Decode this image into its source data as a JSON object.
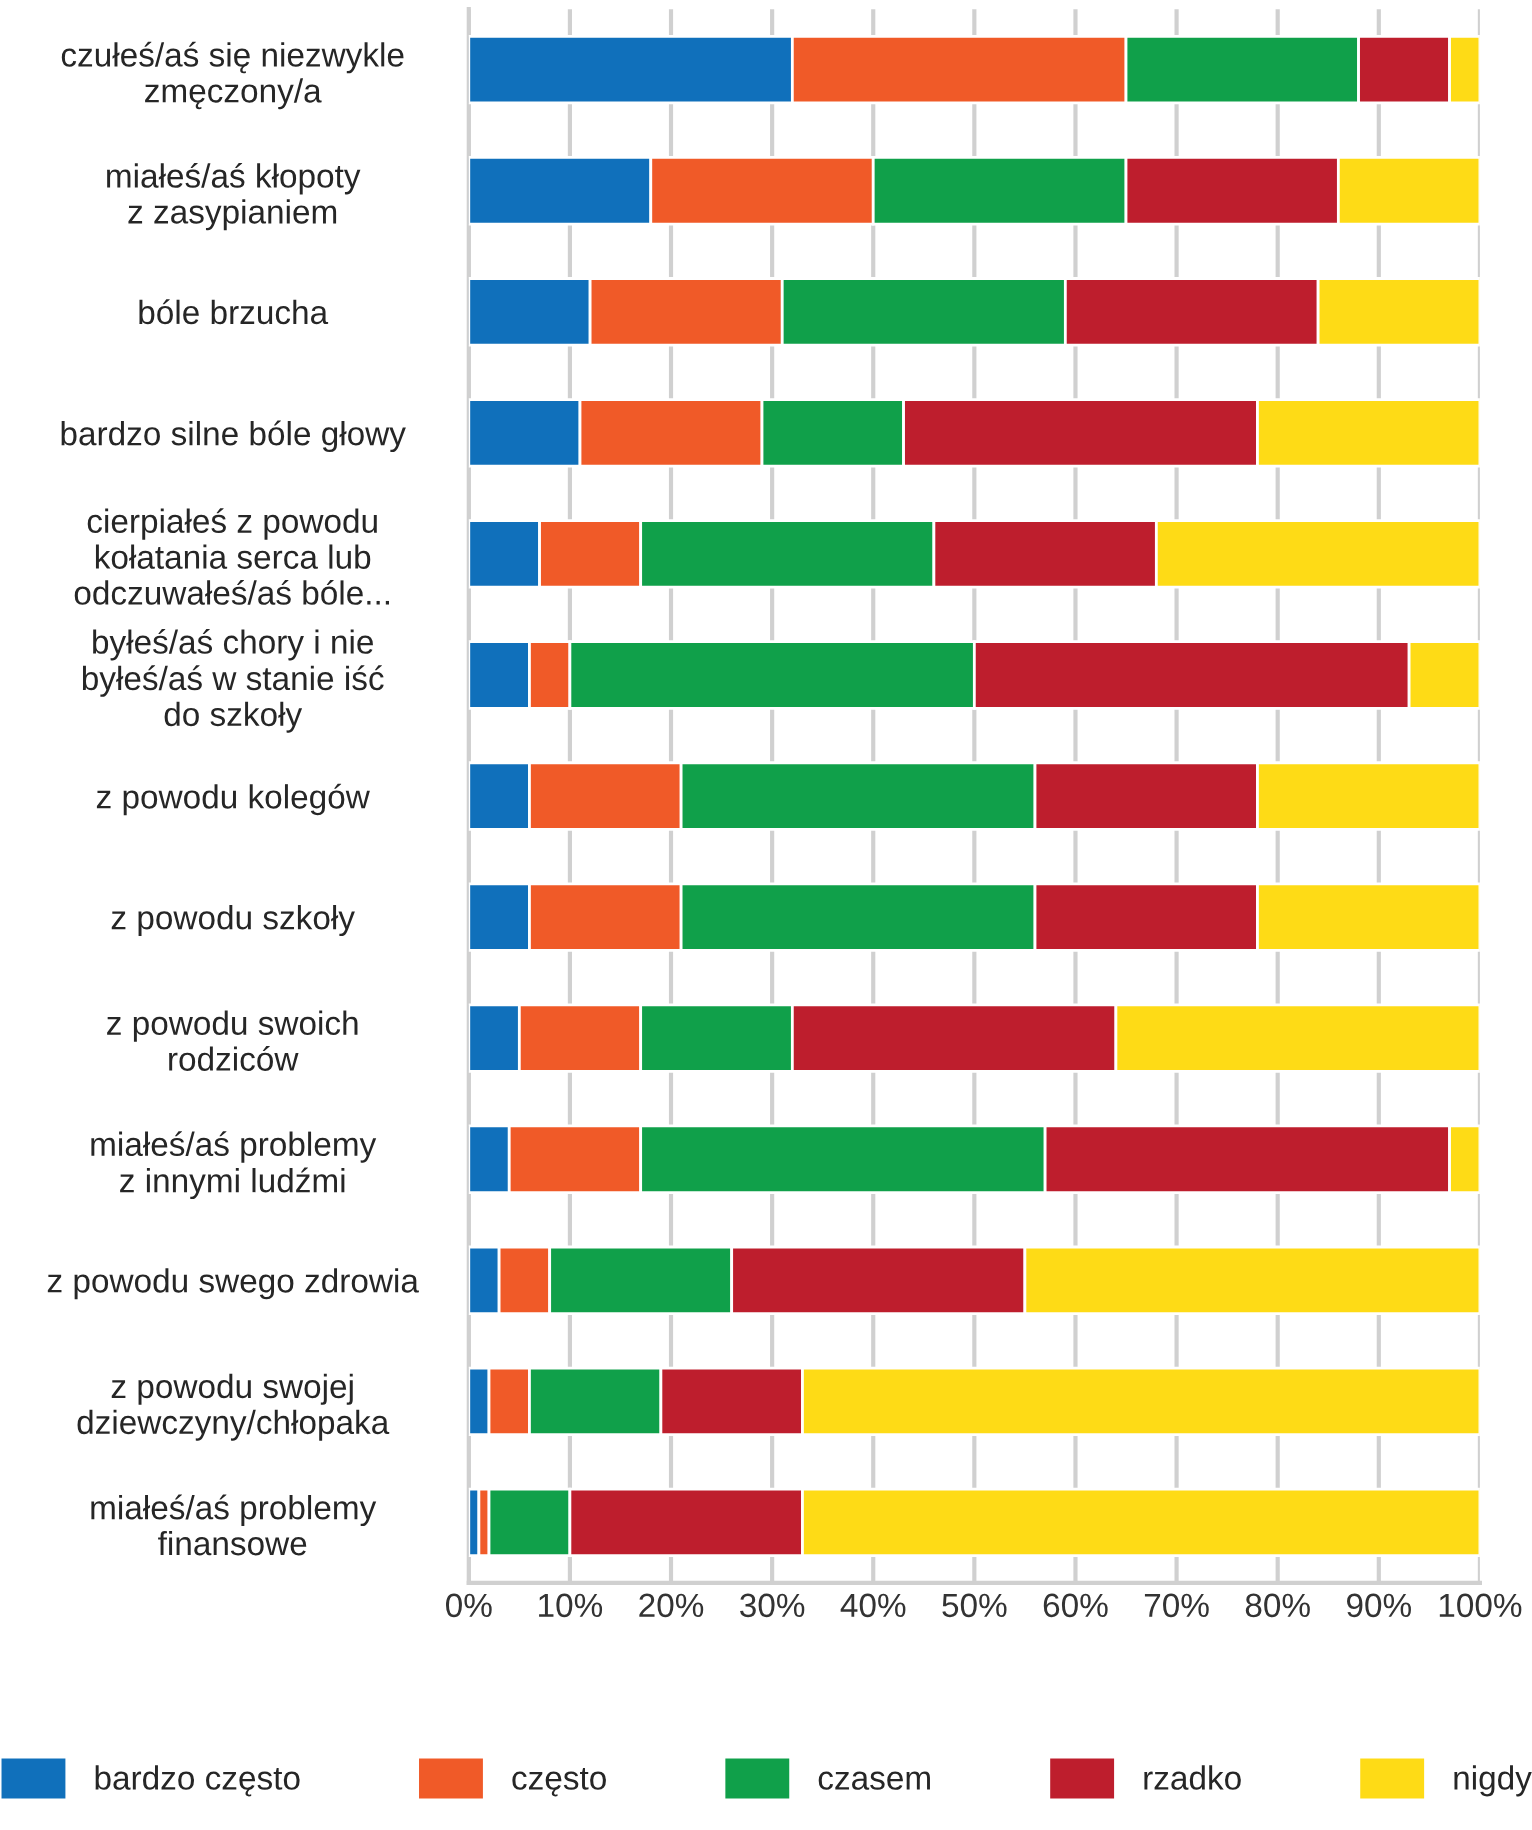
{
  "chart_data": {
    "type": "bar",
    "orientation": "horizontal",
    "stacked": true,
    "categories": [
      "czułeś/aś się niezwykle\nzmęczony/a",
      "miałeś/aś kłopoty\nz zasypianiem",
      "bóle brzucha",
      "bardzo silne bóle głowy",
      "cierpiałeś z powodu\nkołatania serca lub\nodczuwałeś/aś bóle...",
      "byłeś/aś chory i nie\nbyłeś/aś w stanie iść\ndo szkoły",
      "z powodu kolegów",
      "z powodu szkoły",
      "z powodu swoich\nrodziców",
      "miałeś/aś problemy\nz innymi ludźmi",
      "z powodu swego zdrowia",
      "z powodu swojej\ndziewczyny/chłopaka",
      "miałeś/aś problemy\nfinansowe"
    ],
    "series": [
      {
        "name": "bardzo często",
        "color": "#1070bb",
        "values": [
          32,
          18,
          12,
          11,
          7,
          6,
          6,
          6,
          5,
          4,
          3,
          2,
          1
        ]
      },
      {
        "name": "często",
        "color": "#f05a28",
        "values": [
          33,
          22,
          19,
          18,
          10,
          4,
          15,
          15,
          12,
          13,
          5,
          4,
          1
        ]
      },
      {
        "name": "czasem",
        "color": "#10a04a",
        "values": [
          23,
          25,
          28,
          14,
          29,
          40,
          35,
          35,
          15,
          40,
          18,
          13,
          8
        ]
      },
      {
        "name": "rzadko",
        "color": "#be1e2d",
        "values": [
          9,
          21,
          25,
          35,
          22,
          43,
          22,
          22,
          32,
          40,
          29,
          14,
          23
        ]
      },
      {
        "name": "nigdy",
        "color": "#fedb16",
        "values": [
          3,
          14,
          16,
          22,
          32,
          7,
          22,
          22,
          36,
          3,
          45,
          67,
          67
        ]
      }
    ],
    "xlim": [
      0,
      100
    ],
    "xticks": [
      {
        "value": 0,
        "label": "0%"
      },
      {
        "value": 10,
        "label": "10%"
      },
      {
        "value": 20,
        "label": "20%"
      },
      {
        "value": 30,
        "label": "30%"
      },
      {
        "value": 40,
        "label": "40%"
      },
      {
        "value": 50,
        "label": "50%"
      },
      {
        "value": 60,
        "label": "60%"
      },
      {
        "value": 70,
        "label": "70%"
      },
      {
        "value": 80,
        "label": "80%"
      },
      {
        "value": 90,
        "label": "90%"
      },
      {
        "value": 100,
        "label": "100%"
      }
    ],
    "grid": "x",
    "legend": "bottom"
  }
}
